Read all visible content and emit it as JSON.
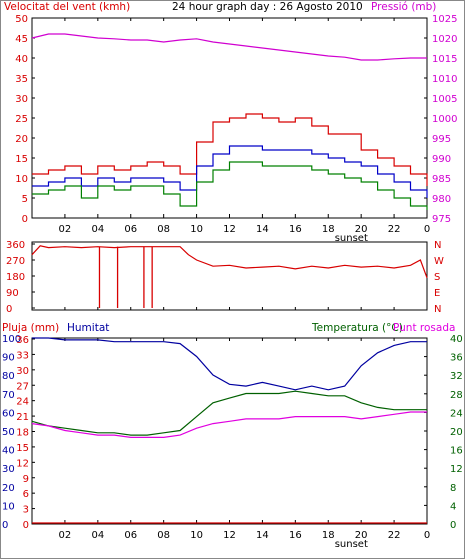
{
  "chart_data": [
    {
      "type": "line",
      "title": "24 hour graph day : 26 Agosto 2010",
      "left_axis_label": "Velocitat del vent (kmh)",
      "right_axis_label": "Pressió (mb)",
      "x_ticks": [
        "02",
        "04",
        "06",
        "08",
        "10",
        "12",
        "14",
        "16",
        "18",
        "20",
        "22",
        "0"
      ],
      "sunset_label": "sunset",
      "left_ylim": [
        0,
        50
      ],
      "left_ticks": [
        "0",
        "5",
        "10",
        "15",
        "20",
        "25",
        "30",
        "35",
        "40",
        "45",
        "50"
      ],
      "right_ylim": [
        975,
        1025
      ],
      "right_ticks": [
        "975",
        "980",
        "985",
        "990",
        "995",
        "1000",
        "1005",
        "1010",
        "1015",
        "1020",
        "1025"
      ],
      "series": [
        {
          "color": "#d80000",
          "x": [
            0,
            1,
            2,
            3,
            4,
            5,
            6,
            7,
            8,
            9,
            10,
            11,
            12,
            13,
            14,
            15,
            16,
            17,
            18,
            19,
            20,
            21,
            22,
            23,
            24
          ],
          "values": [
            11,
            12,
            13,
            11,
            13,
            12,
            13,
            14,
            13,
            11,
            19,
            24,
            25,
            26,
            25,
            24,
            25,
            23,
            21,
            21,
            17,
            15,
            13,
            11,
            8
          ]
        },
        {
          "color": "#0000c8",
          "x": [
            0,
            1,
            2,
            3,
            4,
            5,
            6,
            7,
            8,
            9,
            10,
            11,
            12,
            13,
            14,
            15,
            16,
            17,
            18,
            19,
            20,
            21,
            22,
            23,
            24
          ],
          "values": [
            8,
            9,
            10,
            8,
            10,
            9,
            10,
            10,
            9,
            7,
            13,
            16,
            18,
            18,
            17,
            17,
            17,
            16,
            15,
            14,
            13,
            11,
            9,
            7,
            5
          ]
        },
        {
          "color": "#008000",
          "x": [
            0,
            1,
            2,
            3,
            4,
            5,
            6,
            7,
            8,
            9,
            10,
            11,
            12,
            13,
            14,
            15,
            16,
            17,
            18,
            19,
            20,
            21,
            22,
            23,
            24
          ],
          "values": [
            6,
            7,
            8,
            5,
            8,
            7,
            8,
            8,
            6,
            3,
            9,
            12,
            14,
            14,
            13,
            13,
            13,
            12,
            11,
            10,
            9,
            7,
            5,
            3,
            2
          ]
        },
        {
          "color": "#d000d0",
          "axis": "right",
          "x": [
            0,
            1,
            2,
            3,
            4,
            5,
            6,
            7,
            8,
            9,
            10,
            11,
            12,
            13,
            14,
            15,
            16,
            17,
            18,
            19,
            20,
            21,
            22,
            23,
            24
          ],
          "values": [
            1020,
            1021,
            1021,
            1020.5,
            1020,
            1019.8,
            1019.5,
            1019.5,
            1019,
            1019.5,
            1019.8,
            1019,
            1018.5,
            1018,
            1017.5,
            1017,
            1016.5,
            1016,
            1015.5,
            1015.2,
            1014.5,
            1014.5,
            1014.8,
            1015,
            1015
          ]
        }
      ]
    },
    {
      "type": "line",
      "y_ticks": [
        "0",
        "90",
        "180",
        "270",
        "360"
      ],
      "ylim": [
        0,
        360
      ],
      "right_labels": [
        "N",
        "W",
        "S",
        "E",
        "N"
      ],
      "x_ticks": [
        "02",
        "04",
        "06",
        "08",
        "10",
        "12",
        "14",
        "16",
        "18",
        "20",
        "22",
        "0"
      ],
      "series": [
        {
          "color": "#d80000",
          "x": [
            0,
            0.5,
            1,
            2,
            3,
            4,
            5,
            6,
            7,
            8,
            9,
            9.5,
            10,
            11,
            12,
            13,
            14,
            15,
            16,
            17,
            18,
            19,
            20,
            21,
            22,
            23,
            23.6,
            24
          ],
          "values": [
            300,
            350,
            340,
            345,
            340,
            345,
            340,
            345,
            345,
            345,
            345,
            300,
            270,
            235,
            240,
            225,
            230,
            235,
            220,
            235,
            225,
            240,
            230,
            235,
            225,
            240,
            270,
            170
          ]
        },
        {
          "color": "#d80000",
          "spikes_x": [
            4.1,
            5.2,
            6.8,
            7.3
          ],
          "spikes_min": [
            0,
            0,
            0,
            0
          ]
        }
      ]
    },
    {
      "type": "line",
      "left_axis_label_1": "Pluja (mm)",
      "left_axis_label_2": "Humitat",
      "right_axis_label_1": "Temperatura (°C)",
      "right_axis_label_2": "Punt rosada",
      "x_ticks": [
        "02",
        "04",
        "06",
        "08",
        "10",
        "12",
        "14",
        "16",
        "18",
        "20",
        "22",
        "0"
      ],
      "sunset_label": "sunset",
      "rain_ticks": [
        "0",
        "3",
        "6",
        "9",
        "12",
        "15",
        "18",
        "21",
        "24",
        "27",
        "30",
        "33",
        "36"
      ],
      "rain_ylim": [
        0,
        36
      ],
      "humidity_ticks": [
        "0",
        "10",
        "20",
        "30",
        "40",
        "50",
        "60",
        "70",
        "80",
        "90",
        "100"
      ],
      "humidity_ylim": [
        0,
        100
      ],
      "temp_ticks": [
        "0",
        "4",
        "8",
        "12",
        "16",
        "20",
        "24",
        "28",
        "32",
        "36",
        "40"
      ],
      "temp_ylim": [
        0,
        40
      ],
      "series": [
        {
          "name": "Humitat",
          "color": "#0000a0",
          "axis": "humidity",
          "x": [
            0,
            1,
            2,
            3,
            4,
            5,
            6,
            7,
            8,
            9,
            10,
            11,
            12,
            13,
            14,
            15,
            16,
            17,
            18,
            19,
            20,
            21,
            22,
            23,
            24
          ],
          "values": [
            100,
            100,
            99,
            99,
            99,
            98,
            98,
            98,
            98,
            97,
            90,
            80,
            75,
            74,
            76,
            74,
            72,
            74,
            72,
            74,
            85,
            92,
            96,
            98,
            98
          ]
        },
        {
          "name": "Temperatura (°C)",
          "color": "#006000",
          "axis": "temp",
          "x": [
            0,
            1,
            2,
            3,
            4,
            5,
            6,
            7,
            8,
            9,
            10,
            11,
            12,
            13,
            14,
            15,
            16,
            17,
            18,
            19,
            20,
            21,
            22,
            23,
            24
          ],
          "values": [
            22,
            21,
            20.5,
            20,
            19.5,
            19.5,
            19,
            19,
            19.5,
            20,
            23,
            26,
            27,
            28,
            28,
            28,
            28.5,
            28,
            27.5,
            27.5,
            26,
            25,
            24.5,
            24.5,
            24.5
          ]
        },
        {
          "name": "Punt rosada",
          "color": "#e000e0",
          "axis": "temp",
          "x": [
            0,
            1,
            2,
            3,
            4,
            5,
            6,
            7,
            8,
            9,
            10,
            11,
            12,
            13,
            14,
            15,
            16,
            17,
            18,
            19,
            20,
            21,
            22,
            23,
            24
          ],
          "values": [
            21.5,
            21,
            20,
            19.5,
            19,
            19,
            18.5,
            18.5,
            18.5,
            19,
            20.5,
            21.5,
            22,
            22.5,
            22.5,
            22.5,
            23,
            23,
            23,
            23,
            22.5,
            23,
            23.5,
            24,
            24
          ]
        },
        {
          "name": "Pluja (mm)",
          "color": "#d80000",
          "axis": "rain",
          "x": [
            0,
            24
          ],
          "values": [
            0,
            0
          ]
        }
      ]
    }
  ]
}
